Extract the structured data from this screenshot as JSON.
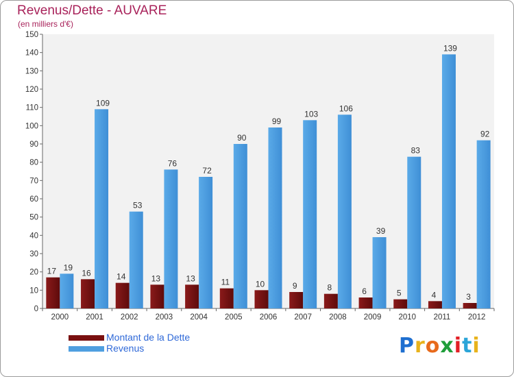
{
  "title": "Revenus/Dette - AUVARE",
  "subtitle": "(en milliers d'€)",
  "logo": {
    "letters": [
      "P",
      "r",
      "o",
      "x",
      "i",
      "t",
      "i"
    ],
    "colors": [
      "#1e6fd0",
      "#e8b31c",
      "#e86a1c",
      "#1f9e3a",
      "#e21f26",
      "#2ba5d8",
      "#e8b31c"
    ]
  },
  "legend": [
    {
      "label": "Montant de la Dette",
      "color": "#7a1010"
    },
    {
      "label": "Revenus",
      "color": "#4f9fe0"
    }
  ],
  "chart_data": {
    "type": "bar",
    "title": "Revenus/Dette - AUVARE",
    "subtitle": "(en milliers d'€)",
    "categories": [
      "2000",
      "2001",
      "2002",
      "2003",
      "2004",
      "2005",
      "2006",
      "2007",
      "2008",
      "2009",
      "2010",
      "2011",
      "2012"
    ],
    "series": [
      {
        "name": "Montant de la Dette",
        "color": "#7a1010",
        "values": [
          17,
          16,
          14,
          13,
          13,
          11,
          10,
          9,
          8,
          6,
          5,
          4,
          3
        ]
      },
      {
        "name": "Revenus",
        "color": "#4f9fe0",
        "values": [
          19,
          109,
          53,
          76,
          72,
          90,
          99,
          103,
          106,
          39,
          83,
          139,
          92
        ]
      }
    ],
    "ylim": [
      0,
      150
    ],
    "yticks": [
      0,
      10,
      20,
      30,
      40,
      50,
      60,
      70,
      80,
      90,
      100,
      110,
      120,
      130,
      140,
      150
    ],
    "xlabel": "",
    "ylabel": "",
    "grid": false,
    "legend_position": "bottom-left"
  }
}
